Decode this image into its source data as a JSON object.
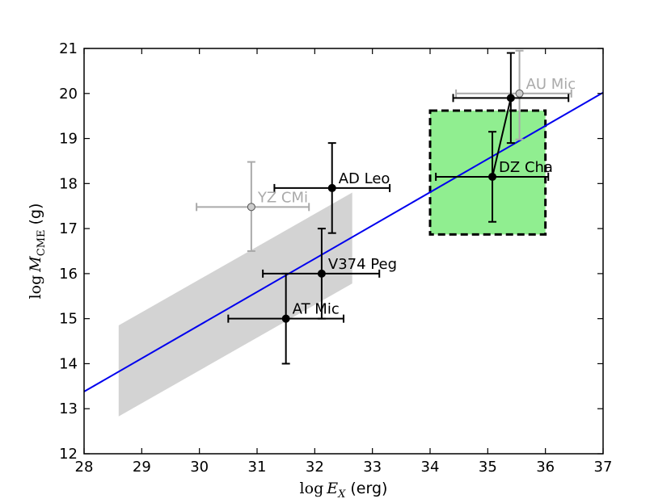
{
  "chart_data": {
    "type": "scatter",
    "xlabel_main": "log",
    "xlabel_var": "E",
    "xlabel_sub": "X",
    "xlabel_unit": "(erg)",
    "ylabel_main": "log",
    "ylabel_var": "M",
    "ylabel_sub": "CME",
    "ylabel_unit": "(g)",
    "xlim": [
      28,
      37
    ],
    "ylim": [
      12,
      21
    ],
    "xticks": [
      "28",
      "29",
      "30",
      "31",
      "32",
      "33",
      "34",
      "35",
      "36",
      "37"
    ],
    "yticks": [
      "12",
      "13",
      "14",
      "15",
      "16",
      "17",
      "18",
      "19",
      "20",
      "21"
    ],
    "grid": false,
    "fit_line": {
      "color": "#0000ee",
      "points": [
        [
          28,
          13.38
        ],
        [
          37,
          20.02
        ]
      ]
    },
    "band": {
      "color": "#d3d3d3",
      "polygon": [
        [
          28.6,
          12.83
        ],
        [
          28.6,
          14.85
        ],
        [
          32.65,
          17.8
        ],
        [
          32.65,
          15.78
        ]
      ]
    },
    "box": {
      "color": "#90ee90",
      "x": [
        34.0,
        36.0
      ],
      "y": [
        16.87,
        19.62
      ]
    },
    "connector": [
      [
        35.08,
        18.15
      ],
      [
        35.4,
        19.9
      ]
    ],
    "points": [
      {
        "label": "YZ CMi",
        "x": 30.9,
        "y": 17.48,
        "xerr": [
          29.95,
          31.9
        ],
        "yerr": [
          16.5,
          18.48
        ],
        "color": "#aaaaaa",
        "marker_fill": "#cccccc"
      },
      {
        "label": "AU Mic",
        "x": 35.55,
        "y": 20.0,
        "xerr": [
          34.45,
          36.45
        ],
        "yerr": [
          18.98,
          20.95
        ],
        "color": "#aaaaaa",
        "marker_fill": "#cccccc"
      },
      {
        "label": "AD Leo",
        "x": 32.3,
        "y": 17.9,
        "xerr": [
          31.3,
          33.3
        ],
        "yerr": [
          16.9,
          18.9
        ],
        "color": "#000000",
        "marker_fill": "#000000"
      },
      {
        "label": "V374 Peg",
        "x": 32.12,
        "y": 16.0,
        "xerr": [
          31.1,
          33.12
        ],
        "yerr": [
          15.0,
          17.0
        ],
        "color": "#000000",
        "marker_fill": "#000000"
      },
      {
        "label": "AT Mic",
        "x": 31.5,
        "y": 15.0,
        "xerr": [
          30.5,
          32.5
        ],
        "yerr": [
          14.0,
          16.0
        ],
        "color": "#000000",
        "marker_fill": "#000000"
      },
      {
        "label": "DZ Cha",
        "x": 35.08,
        "y": 18.15,
        "xerr": [
          34.1,
          36.05
        ],
        "yerr": [
          17.15,
          19.15
        ],
        "color": "#000000",
        "marker_fill": "#000000"
      },
      {
        "label": "",
        "x": 35.4,
        "y": 19.9,
        "xerr": [
          34.4,
          36.4
        ],
        "yerr": [
          18.9,
          20.9
        ],
        "color": "#000000",
        "marker_fill": "#000000"
      }
    ]
  }
}
